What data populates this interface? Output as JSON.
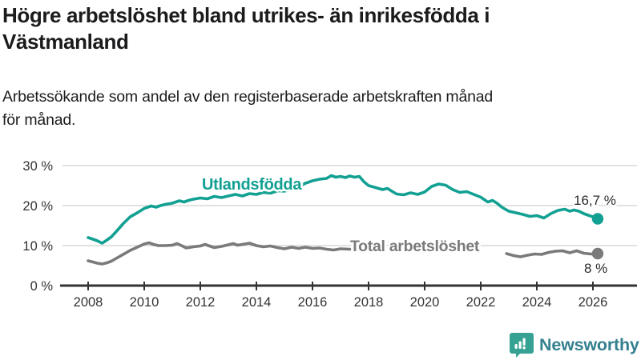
{
  "header": {
    "title_line1": "Högre arbetslöshet bland utrikes- än inrikesfödda i",
    "title_line2": "Västmanland",
    "subtitle_line1": "Arbetssökande som andel av den registerbaserade arbetskraften månad",
    "subtitle_line2": "för månad."
  },
  "footer": {
    "brand": "Newsworthy"
  },
  "colors": {
    "teal": "#12a093",
    "gray": "#7a7a7a",
    "grid": "#d8d8d8",
    "axis": "#333333",
    "logo_bubble": "#35a294",
    "logo_text": "#34808f"
  },
  "chart_data": {
    "type": "line",
    "title": "Högre arbetslöshet bland utrikes- än inrikesfödda i Västmanland",
    "subtitle": "Arbetssökande som andel av den registerbaserade arbetskraften månad för månad.",
    "xlabel": "",
    "ylabel": "",
    "x_ticks": [
      2008,
      2010,
      2012,
      2014,
      2016,
      2018,
      2020,
      2022,
      2024,
      2026
    ],
    "x_tick_labels": [
      "2008",
      "2010",
      "2012",
      "2014",
      "2016",
      "2018",
      "2020",
      "2022",
      "2024",
      "2026"
    ],
    "y_ticks": [
      0,
      10,
      20,
      30
    ],
    "y_tick_labels": [
      "0 %",
      "10 %",
      "20 %",
      "30 %"
    ],
    "ylim": [
      0,
      32
    ],
    "grid": "horizontal",
    "legend_position": "inline-labels",
    "series": [
      {
        "name": "Utlandsfödda",
        "color": "#12a093",
        "end_label": "16,7 %",
        "end_value": 16.7,
        "points": [
          [
            2008.0,
            12.0
          ],
          [
            2008.17,
            11.6
          ],
          [
            2008.33,
            11.2
          ],
          [
            2008.5,
            10.6
          ],
          [
            2008.67,
            11.4
          ],
          [
            2008.83,
            12.2
          ],
          [
            2009.0,
            13.5
          ],
          [
            2009.25,
            15.5
          ],
          [
            2009.5,
            17.2
          ],
          [
            2009.75,
            18.2
          ],
          [
            2010.0,
            19.3
          ],
          [
            2010.25,
            19.9
          ],
          [
            2010.42,
            19.6
          ],
          [
            2010.58,
            20.0
          ],
          [
            2010.75,
            20.3
          ],
          [
            2011.0,
            20.6
          ],
          [
            2011.25,
            21.2
          ],
          [
            2011.42,
            20.9
          ],
          [
            2011.58,
            21.3
          ],
          [
            2011.75,
            21.6
          ],
          [
            2012.0,
            21.9
          ],
          [
            2012.25,
            21.7
          ],
          [
            2012.5,
            22.3
          ],
          [
            2012.75,
            22.0
          ],
          [
            2013.0,
            22.4
          ],
          [
            2013.25,
            22.8
          ],
          [
            2013.5,
            22.4
          ],
          [
            2013.75,
            23.0
          ],
          [
            2014.0,
            22.8
          ],
          [
            2014.25,
            23.3
          ],
          [
            2014.5,
            23.1
          ],
          [
            2014.75,
            23.7
          ],
          [
            2015.0,
            23.6
          ],
          [
            2015.25,
            24.2
          ],
          [
            2015.5,
            24.6
          ],
          [
            2015.75,
            25.6
          ],
          [
            2016.0,
            26.2
          ],
          [
            2016.25,
            26.6
          ],
          [
            2016.5,
            26.8
          ],
          [
            2016.67,
            27.5
          ],
          [
            2016.83,
            27.1
          ],
          [
            2017.0,
            27.3
          ],
          [
            2017.17,
            27.0
          ],
          [
            2017.33,
            27.4
          ],
          [
            2017.5,
            27.1
          ],
          [
            2017.67,
            27.3
          ],
          [
            2017.83,
            26.0
          ],
          [
            2018.0,
            25.0
          ],
          [
            2018.25,
            24.5
          ],
          [
            2018.5,
            24.0
          ],
          [
            2018.67,
            24.3
          ],
          [
            2018.83,
            23.6
          ],
          [
            2019.0,
            22.9
          ],
          [
            2019.25,
            22.7
          ],
          [
            2019.5,
            23.2
          ],
          [
            2019.75,
            22.8
          ],
          [
            2020.0,
            23.4
          ],
          [
            2020.25,
            24.8
          ],
          [
            2020.5,
            25.4
          ],
          [
            2020.75,
            25.1
          ],
          [
            2021.0,
            24.0
          ],
          [
            2021.25,
            23.3
          ],
          [
            2021.5,
            23.5
          ],
          [
            2021.75,
            22.8
          ],
          [
            2022.0,
            22.1
          ],
          [
            2022.25,
            20.9
          ],
          [
            2022.42,
            21.3
          ],
          [
            2022.58,
            20.6
          ],
          [
            2022.75,
            19.6
          ],
          [
            2023.0,
            18.6
          ],
          [
            2023.25,
            18.2
          ],
          [
            2023.5,
            17.8
          ],
          [
            2023.75,
            17.3
          ],
          [
            2024.0,
            17.5
          ],
          [
            2024.25,
            16.9
          ],
          [
            2024.5,
            18.0
          ],
          [
            2024.75,
            18.8
          ],
          [
            2025.0,
            19.1
          ],
          [
            2025.17,
            18.6
          ],
          [
            2025.33,
            18.9
          ],
          [
            2025.5,
            18.6
          ],
          [
            2025.67,
            18.0
          ],
          [
            2025.83,
            17.6
          ],
          [
            2026.0,
            17.2
          ],
          [
            2026.17,
            16.7
          ]
        ]
      },
      {
        "name": "Total arbetslöshet",
        "color": "#7a7a7a",
        "end_label": "8 %",
        "end_value": 8.0,
        "segments": [
          [
            [
              2008.0,
              6.2
            ],
            [
              2008.17,
              5.9
            ],
            [
              2008.33,
              5.6
            ],
            [
              2008.5,
              5.4
            ],
            [
              2008.67,
              5.7
            ],
            [
              2008.83,
              6.1
            ],
            [
              2009.0,
              6.8
            ],
            [
              2009.25,
              7.8
            ],
            [
              2009.5,
              8.8
            ],
            [
              2009.75,
              9.6
            ],
            [
              2010.0,
              10.4
            ],
            [
              2010.17,
              10.7
            ],
            [
              2010.33,
              10.3
            ],
            [
              2010.5,
              10.0
            ],
            [
              2010.75,
              10.0
            ],
            [
              2011.0,
              10.1
            ],
            [
              2011.17,
              10.5
            ],
            [
              2011.33,
              10.0
            ],
            [
              2011.5,
              9.4
            ],
            [
              2011.75,
              9.7
            ],
            [
              2012.0,
              9.9
            ],
            [
              2012.17,
              10.3
            ],
            [
              2012.33,
              9.9
            ],
            [
              2012.5,
              9.5
            ],
            [
              2012.75,
              9.8
            ],
            [
              2013.0,
              10.2
            ],
            [
              2013.17,
              10.5
            ],
            [
              2013.33,
              10.1
            ],
            [
              2013.5,
              10.3
            ],
            [
              2013.75,
              10.6
            ],
            [
              2014.0,
              10.0
            ],
            [
              2014.25,
              9.7
            ],
            [
              2014.5,
              9.9
            ],
            [
              2014.75,
              9.5
            ],
            [
              2015.0,
              9.2
            ],
            [
              2015.25,
              9.6
            ],
            [
              2015.5,
              9.3
            ],
            [
              2015.75,
              9.6
            ],
            [
              2016.0,
              9.3
            ],
            [
              2016.25,
              9.4
            ],
            [
              2016.5,
              9.1
            ],
            [
              2016.75,
              8.9
            ],
            [
              2017.0,
              9.2
            ],
            [
              2017.33,
              9.1
            ]
          ],
          [
            [
              2022.92,
              8.0
            ],
            [
              2023.17,
              7.5
            ],
            [
              2023.42,
              7.2
            ],
            [
              2023.67,
              7.6
            ],
            [
              2023.92,
              7.9
            ],
            [
              2024.17,
              7.8
            ],
            [
              2024.42,
              8.3
            ],
            [
              2024.67,
              8.6
            ],
            [
              2024.92,
              8.7
            ],
            [
              2025.17,
              8.2
            ],
            [
              2025.42,
              8.7
            ],
            [
              2025.67,
              8.1
            ],
            [
              2025.92,
              7.9
            ],
            [
              2026.17,
              8.0
            ]
          ]
        ]
      }
    ]
  }
}
